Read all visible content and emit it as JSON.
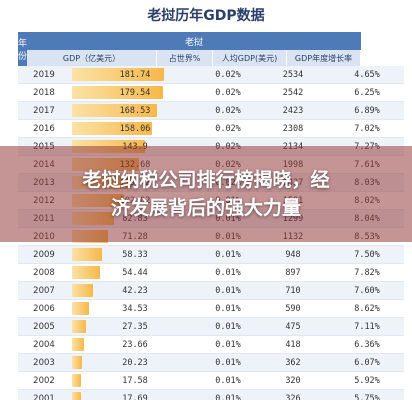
{
  "title": "老挝历年GDP数据",
  "header": {
    "year": "年份",
    "group": "老挝",
    "gdp": "GDP（亿美元）",
    "share": "占世界%",
    "per_capita": "人均GDP(美元)",
    "growth": "GDP年度增长率"
  },
  "rows": [
    {
      "year": "2019",
      "gdp": "181.74",
      "share": "0.02%",
      "pc": "2534",
      "growth": "4.65%"
    },
    {
      "year": "2018",
      "gdp": "179.54",
      "share": "0.02%",
      "pc": "2542",
      "growth": "6.25%"
    },
    {
      "year": "2017",
      "gdp": "168.53",
      "share": "0.02%",
      "pc": "2423",
      "growth": "6.89%"
    },
    {
      "year": "2016",
      "gdp": "158.06",
      "share": "0.02%",
      "pc": "2308",
      "growth": "7.02%"
    },
    {
      "year": "2015",
      "gdp": "143.9",
      "share": "0.02%",
      "pc": "2134",
      "growth": "7.27%"
    },
    {
      "year": "2014",
      "gdp": "132.68",
      "share": "0.02%",
      "pc": "1998",
      "growth": "7.61%"
    },
    {
      "year": "2013",
      "gdp": "119.42",
      "share": "0.02%",
      "pc": "1827",
      "growth": "8.03%"
    },
    {
      "year": "2012",
      "gdp": "102.02",
      "share": "0.01%",
      "pc": "1581",
      "growth": "8.02%"
    },
    {
      "year": "2011",
      "gdp": "82.83",
      "share": "0.01%",
      "pc": "1299",
      "growth": "8.04%"
    },
    {
      "year": "2010",
      "gdp": "71.28",
      "share": "0.01%",
      "pc": "1132",
      "growth": "8.53%"
    },
    {
      "year": "2009",
      "gdp": "58.33",
      "share": "0.01%",
      "pc": "948",
      "growth": "7.50%"
    },
    {
      "year": "2008",
      "gdp": "54.44",
      "share": "0.01%",
      "pc": "897",
      "growth": "7.82%"
    },
    {
      "year": "2007",
      "gdp": "42.23",
      "share": "0.01%",
      "pc": "710",
      "growth": "7.60%"
    },
    {
      "year": "2006",
      "gdp": "34.53",
      "share": "0.01%",
      "pc": "590",
      "growth": "8.62%"
    },
    {
      "year": "2005",
      "gdp": "27.35",
      "share": "0.01%",
      "pc": "475",
      "growth": "7.11%"
    },
    {
      "year": "2004",
      "gdp": "23.66",
      "share": "0.01%",
      "pc": "418",
      "growth": "6.36%"
    },
    {
      "year": "2003",
      "gdp": "20.23",
      "share": "0.01%",
      "pc": "362",
      "growth": "6.07%"
    },
    {
      "year": "2002",
      "gdp": "17.58",
      "share": "0.01%",
      "pc": "320",
      "growth": "5.92%"
    },
    {
      "year": "2001",
      "gdp": "17.69",
      "share": "0.01%",
      "pc": "326",
      "growth": "5.75%"
    }
  ],
  "overlay": {
    "line1": "老挝纳税公司排行榜揭晓，经",
    "line2": "济发展背后的强大力量"
  },
  "colors": {
    "header_blue": "#4f7ab8",
    "bar_orange": "#f7b84a",
    "overlay": "#963c3c"
  }
}
